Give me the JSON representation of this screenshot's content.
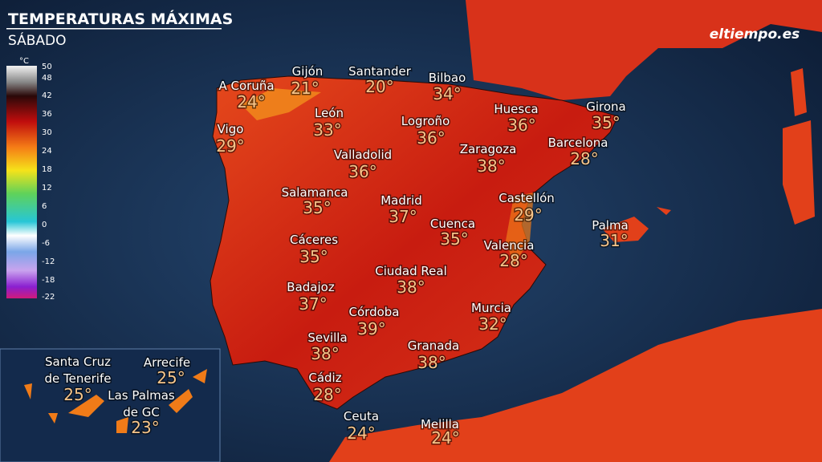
{
  "header": {
    "title": "TEMPERATURAS MÁXIMAS",
    "subtitle": "SÁBADO",
    "logo": "eltiempo.es"
  },
  "legend": {
    "unit": "°C",
    "labels": [
      "50",
      "48",
      "42",
      "36",
      "30",
      "24",
      "18",
      "12",
      "6",
      "0",
      "-6",
      "-12",
      "-18",
      "-22"
    ]
  },
  "cities": [
    {
      "name": "A Coruña",
      "temp": "24°"
    },
    {
      "name": "Gijón",
      "temp": "21°"
    },
    {
      "name": "Santander",
      "temp": "20°"
    },
    {
      "name": "Bilbao",
      "temp": "34°"
    },
    {
      "name": "León",
      "temp": "33°"
    },
    {
      "name": "Logroño",
      "temp": "36°"
    },
    {
      "name": "Huesca",
      "temp": "36°"
    },
    {
      "name": "Girona",
      "temp": "35°"
    },
    {
      "name": "Vigo",
      "temp": "29°"
    },
    {
      "name": "Barcelona",
      "temp": "28°"
    },
    {
      "name": "Zaragoza",
      "temp": "38°"
    },
    {
      "name": "Valladolid",
      "temp": "36°"
    },
    {
      "name": "Salamanca",
      "temp": "35°"
    },
    {
      "name": "Madrid",
      "temp": "37°"
    },
    {
      "name": "Castellón",
      "temp": "29°"
    },
    {
      "name": "Cuenca",
      "temp": "35°"
    },
    {
      "name": "Palma",
      "temp": "31°"
    },
    {
      "name": "Cáceres",
      "temp": "35°"
    },
    {
      "name": "Valencia",
      "temp": "28°"
    },
    {
      "name": "Ciudad Real",
      "temp": "38°"
    },
    {
      "name": "Badajoz",
      "temp": "37°"
    },
    {
      "name": "Murcia",
      "temp": "32°"
    },
    {
      "name": "Córdoba",
      "temp": "39°"
    },
    {
      "name": "Sevilla",
      "temp": "38°"
    },
    {
      "name": "Granada",
      "temp": "38°"
    },
    {
      "name": "Cádiz",
      "temp": "28°"
    },
    {
      "name": "Ceuta",
      "temp": "24°"
    },
    {
      "name": "Melilla",
      "temp": "24°"
    },
    {
      "name": [
        "Santa Cruz",
        "de Tenerife"
      ],
      "temp": "25°"
    },
    {
      "name": "Arrecife",
      "temp": "25°"
    },
    {
      "name": [
        "Las Palmas",
        "de GC"
      ],
      "temp": "23°"
    }
  ]
}
